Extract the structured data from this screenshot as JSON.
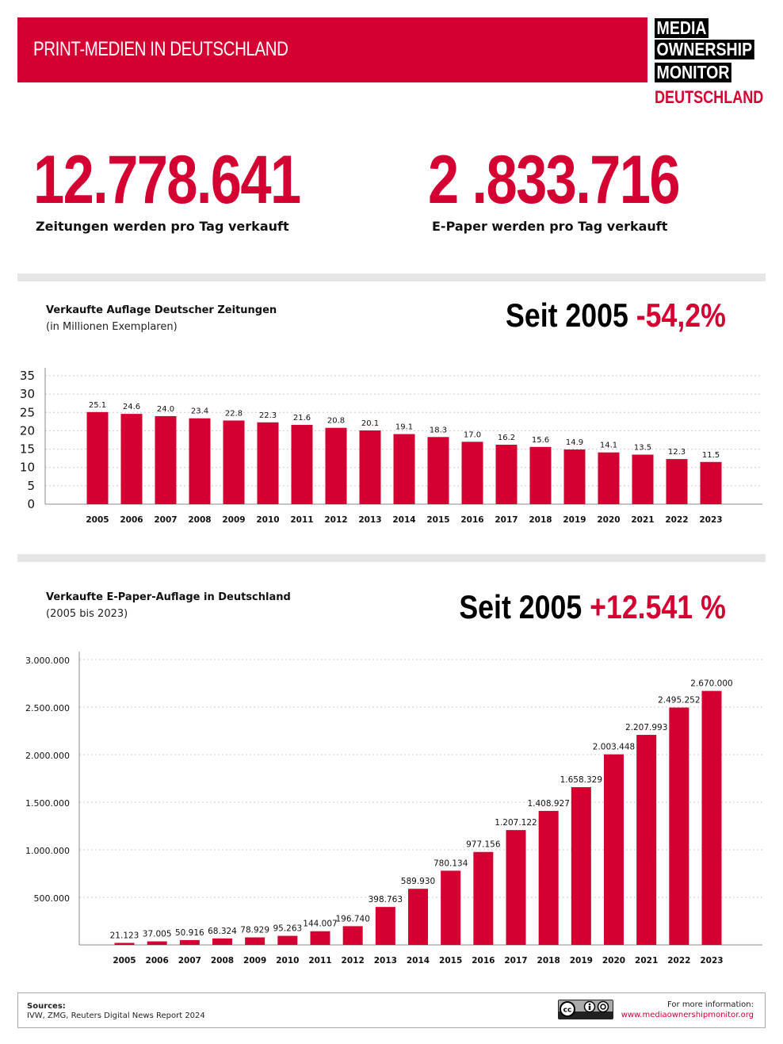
{
  "header": {
    "title": "PRINT-MEDIEN IN DEUTSCHLAND",
    "logo": {
      "lines": [
        "MEDIA",
        "OWNERSHIP",
        "MONITOR"
      ],
      "sub": "DEUTSCHLAND"
    }
  },
  "stats": [
    {
      "value": "12.778.641",
      "label": "Zeitungen werden pro Tag verkauft"
    },
    {
      "value": "2 .833.716",
      "label": "E-Paper werden pro Tag verkauft"
    }
  ],
  "colors": {
    "accent": "#d50032",
    "divider": "#e6e6e6"
  },
  "chart_data": [
    {
      "type": "bar",
      "title": "Verkaufte Auflage Deutscher Zeitungen",
      "subtitle": "(in Millionen Exemplaren)",
      "headline_prefix": "Seit 2005",
      "headline_value": "-54,2%",
      "categories": [
        "2005",
        "2006",
        "2007",
        "2008",
        "2009",
        "2010",
        "2011",
        "2012",
        "2013",
        "2014",
        "2015",
        "2016",
        "2017",
        "2018",
        "2019",
        "2020",
        "2021",
        "2022",
        "2023"
      ],
      "values": [
        25.1,
        24.6,
        24.0,
        23.4,
        22.8,
        22.3,
        21.6,
        20.8,
        20.1,
        19.1,
        18.3,
        17.0,
        16.2,
        15.6,
        14.9,
        14.1,
        13.5,
        12.3,
        11.5
      ],
      "data_labels": [
        "25.1",
        "24.6",
        "24.0",
        "23.4",
        "22.8",
        "22.3",
        "21.6",
        "20.8",
        "20.1",
        "19.1",
        "18.3",
        "17.0",
        "16.2",
        "15.6",
        "14.9",
        "14.1",
        "13.5",
        "12.3",
        "11.5"
      ],
      "yticks": [
        "0",
        "5",
        "10",
        "15",
        "20",
        "25",
        "30",
        "35"
      ],
      "ylim": [
        0,
        35
      ],
      "grid": true
    },
    {
      "type": "bar",
      "title": "Verkaufte E-Paper-Auflage in Deutschland",
      "subtitle": "(2005 bis 2023)",
      "headline_prefix": "Seit 2005",
      "headline_value": "+12.541 %",
      "categories": [
        "2005",
        "2006",
        "2007",
        "2008",
        "2009",
        "2010",
        "2011",
        "2012",
        "2013",
        "2014",
        "2015",
        "2016",
        "2017",
        "2018",
        "2019",
        "2020",
        "2021",
        "2022",
        "2023"
      ],
      "values": [
        21123,
        37005,
        50916,
        68324,
        78929,
        95263,
        144007,
        196740,
        398763,
        589930,
        780134,
        977156,
        1207122,
        1408927,
        1658329,
        2003448,
        2207993,
        2495252,
        2670000
      ],
      "data_labels": [
        "21.123",
        "37.005",
        "50.916",
        "68.324",
        "78.929",
        "95.263",
        "144.007",
        "196.740",
        "398.763",
        "589.930",
        "780.134",
        "977.156",
        "1.207.122",
        "1.408.927",
        "1.658.329",
        "2.003.448",
        "2.207.993",
        "2.495.252",
        "2.670.000"
      ],
      "yticks": [
        "500.000",
        "1.000.000",
        "1.500.000",
        "2.000.000",
        "2.500.000",
        "3.000.000"
      ],
      "ylim": [
        0,
        3000000
      ],
      "grid": true
    }
  ],
  "footer": {
    "sources_label": "Sources:",
    "sources": "IVW, ZMG, Reuters Digital News Report 2024",
    "license_icon": "cc-by-icon",
    "info_label": "For more information:",
    "link": "www.mediaownershipmonitor.org"
  }
}
